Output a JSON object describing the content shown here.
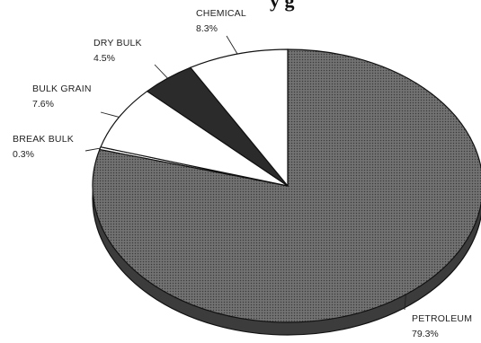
{
  "title_fragment": "y  g",
  "chart_data": {
    "type": "pie",
    "style": "3d",
    "categories": [
      "PETROLEUM",
      "BREAK BULK",
      "BULK GRAIN",
      "DRY BULK",
      "CHEMICAL"
    ],
    "values": [
      79.3,
      0.3,
      7.6,
      4.5,
      8.3
    ],
    "value_labels": [
      "79.3%",
      "0.3%",
      "7.6%",
      "4.5%",
      "8.3%"
    ],
    "colors": [
      "#555555",
      "#ffffff",
      "#ffffff",
      "#2b2b2b",
      "#ffffff"
    ],
    "legend": "none",
    "title": ""
  }
}
